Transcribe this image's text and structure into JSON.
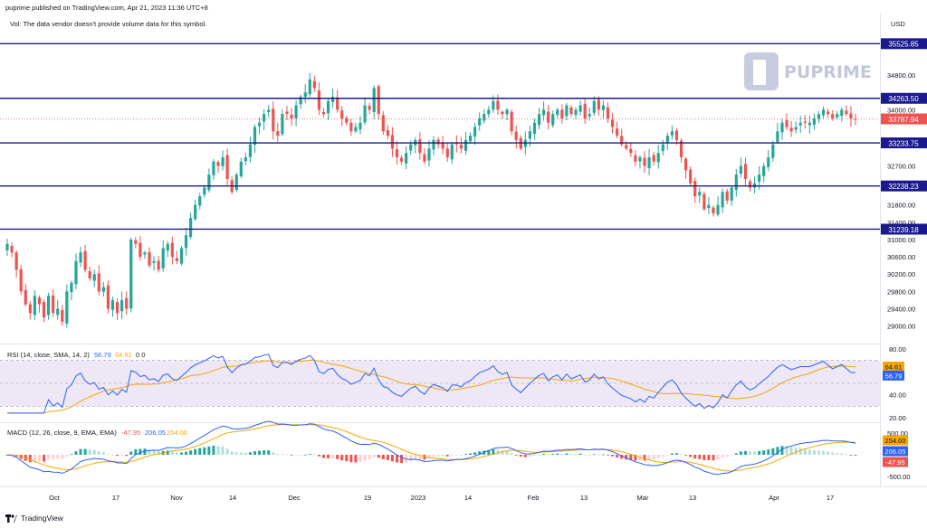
{
  "header": {
    "publisher": "puprime published on TradingView.com, Apr 21, 2023 11:36 UTC+8",
    "volume_note": "Vol: The data vendor doesn't provide volume data for this symbol.",
    "currency": "USD"
  },
  "watermark": {
    "logo_text": "PUPRIME"
  },
  "footer": {
    "brand": "TradingView"
  },
  "colors": {
    "up": "#26a69a",
    "down": "#ef5350",
    "level": "#1a1a8e",
    "rsi": "#2962ff",
    "rsi_ma": "#f7a600",
    "rsi_band": "#ede7f6",
    "macd": "#2962ff",
    "signal": "#f7a600"
  },
  "chart_data": [
    {
      "type": "candlestick",
      "name": "price",
      "y_axis_ticks": [
        "34800.00",
        "34000.00",
        "32700.00",
        "31800.00",
        "31400.00",
        "31000.00",
        "30600.00",
        "30200.00",
        "29800.00",
        "29400.00",
        "29000.00"
      ],
      "ylim": [
        28700,
        35700
      ],
      "levels": [
        {
          "label": "35525.85",
          "value": 35525.85
        },
        {
          "label": "34263.50",
          "value": 34263.5
        },
        {
          "label": "33233.75",
          "value": 33233.75
        },
        {
          "label": "32238.23",
          "value": 32238.23
        },
        {
          "label": "31239.18",
          "value": 31239.18
        }
      ],
      "last_price": {
        "label": "33787.94",
        "value": 33787.94
      },
      "x_axis_labels": [
        "Oct",
        "17",
        "Nov",
        "14",
        "Dec",
        "19",
        "2023",
        "14",
        "Feb",
        "13",
        "Mar",
        "13",
        "Apr",
        "17"
      ],
      "closes": [
        30900,
        30700,
        30300,
        29800,
        29500,
        29300,
        29700,
        29500,
        29200,
        29700,
        29300,
        29400,
        29100,
        29800,
        30000,
        30500,
        30700,
        30300,
        30100,
        30200,
        29800,
        29900,
        29400,
        29600,
        29300,
        29600,
        29400,
        31000,
        30900,
        30600,
        30700,
        30400,
        30500,
        30300,
        30800,
        30900,
        30600,
        30500,
        30800,
        31100,
        31500,
        31800,
        32000,
        32200,
        32500,
        32800,
        32700,
        32900,
        32400,
        32100,
        32500,
        32800,
        32900,
        33200,
        33600,
        33700,
        33900,
        34000,
        33500,
        33400,
        33900,
        33900,
        33800,
        34100,
        34300,
        34400,
        34700,
        34500,
        34000,
        33900,
        34200,
        34300,
        34000,
        33800,
        33700,
        33500,
        33600,
        33700,
        34100,
        34000,
        34500,
        33900,
        33500,
        33400,
        33100,
        32900,
        32800,
        33000,
        33200,
        33300,
        33000,
        32800,
        33100,
        33300,
        33200,
        33100,
        32900,
        33200,
        33200,
        33100,
        33300,
        33400,
        33600,
        33800,
        33900,
        34000,
        34200,
        34000,
        33900,
        34000,
        33500,
        33300,
        33100,
        33300,
        33500,
        33700,
        33900,
        34000,
        33700,
        33900,
        34000,
        33800,
        34100,
        33900,
        34000,
        34100,
        33800,
        33900,
        34200,
        34000,
        34100,
        33800,
        33600,
        33400,
        33200,
        33100,
        33000,
        32800,
        32900,
        32700,
        32900,
        32800,
        33000,
        33200,
        33400,
        33500,
        33300,
        32900,
        32600,
        32300,
        32000,
        32100,
        31700,
        31800,
        31600,
        31800,
        32100,
        31900,
        32200,
        32500,
        32700,
        32400,
        32200,
        32300,
        32500,
        32700,
        32900,
        33200,
        33500,
        33700,
        33600,
        33500,
        33600,
        33700,
        33700,
        33700,
        33800,
        33900,
        34000,
        33900,
        33800,
        33900,
        34000,
        33900,
        33800,
        33788
      ],
      "rsi_series": [
        {
          "label": "RSI (14, close, SMA, 14, 2)",
          "value_label": "56.79",
          "ma_value_label": "64.61",
          "extra": "0 0",
          "ylim": [
            20,
            80
          ],
          "ticks": [
            "80.00",
            "40.00",
            "20.00"
          ]
        }
      ],
      "macd": {
        "label": "MACD (12, 26, close, 9, EMA, EMA)",
        "hist_label": "-47.95",
        "macd_label": "206.05",
        "signal_label": "254.00",
        "ticks": [
          "500.00",
          "-500.00"
        ],
        "ylim": [
          -650,
          650
        ]
      }
    }
  ]
}
